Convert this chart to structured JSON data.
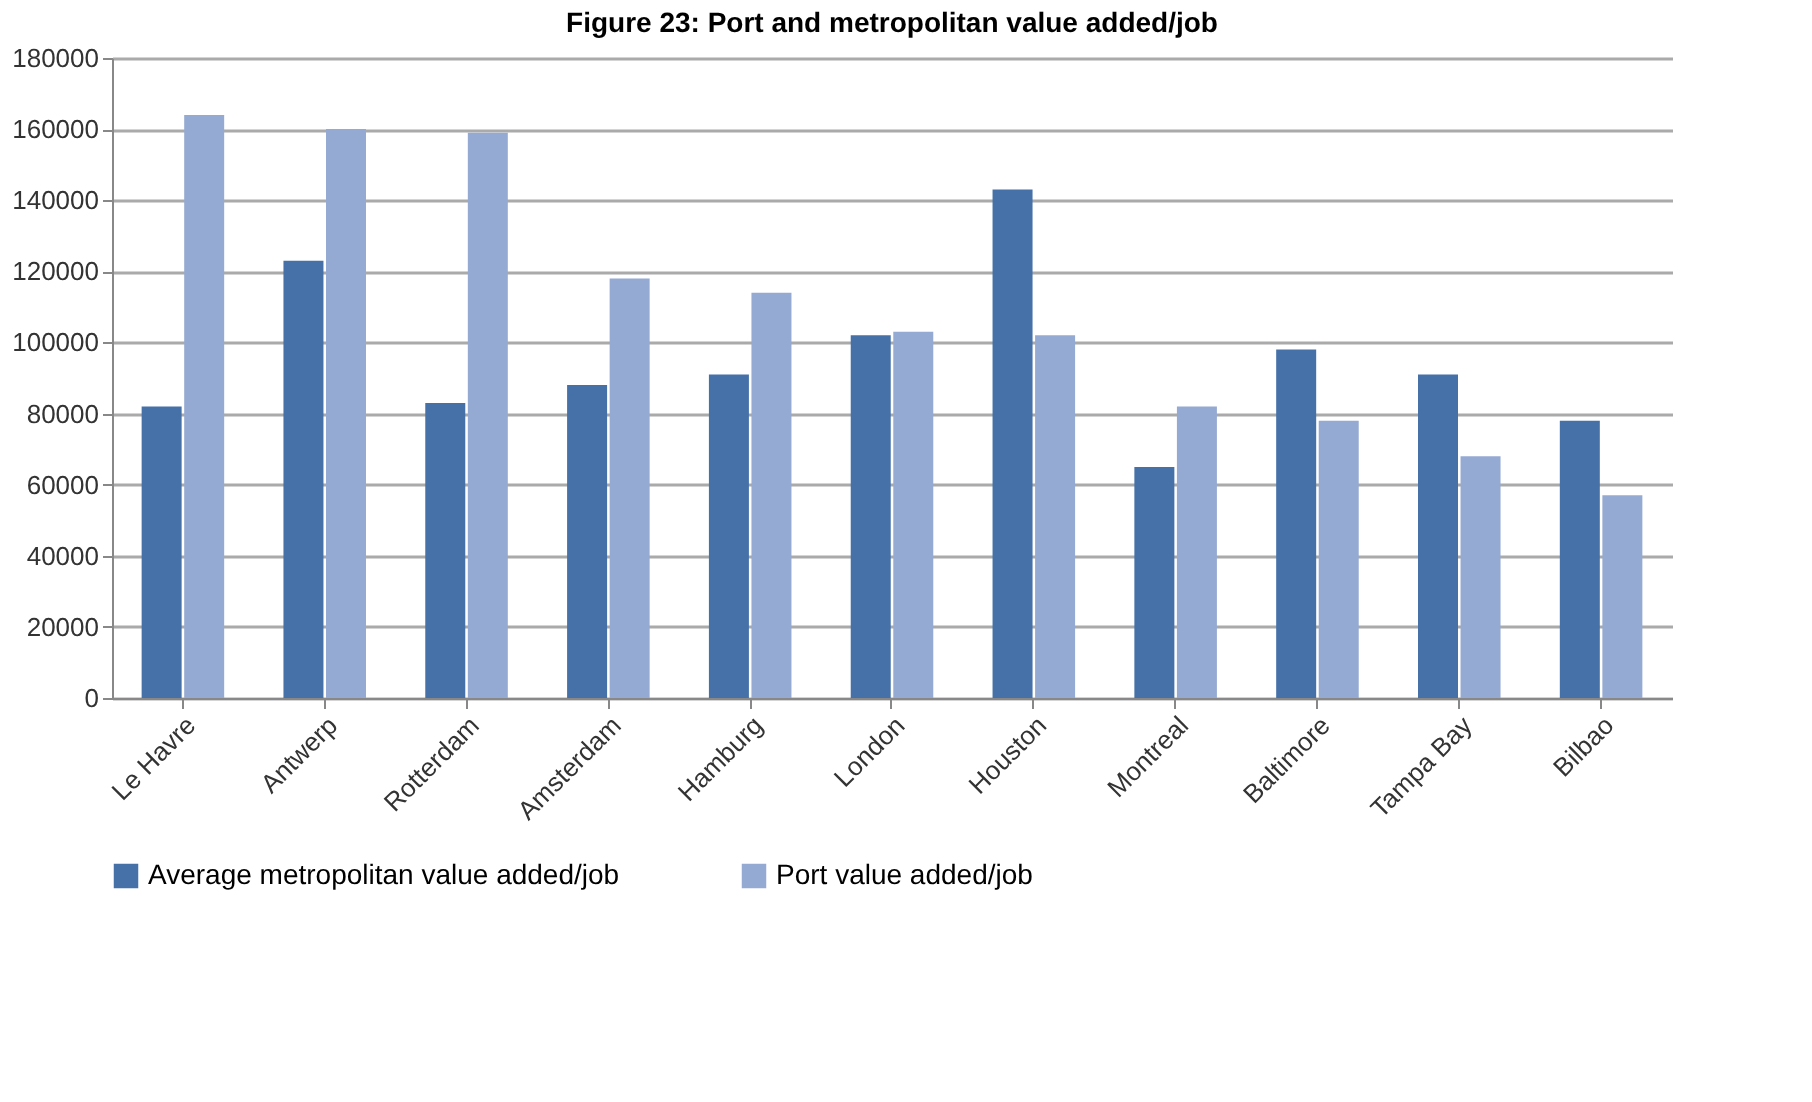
{
  "chart_data": {
    "type": "bar",
    "title": "Figure 23:        Port and metropolitan value added/job",
    "categories": [
      "Le Havre",
      "Antwerp",
      "Rotterdam",
      "Amsterdam",
      "Hamburg",
      "London",
      "Houston",
      "Montreal",
      "Baltimore",
      "Tampa Bay",
      "Bilbao"
    ],
    "series": [
      {
        "name": "Average metropolitan value added/job",
        "color": "#4571a8",
        "values": [
          82000,
          123000,
          83000,
          88000,
          91000,
          102000,
          143000,
          65000,
          98000,
          91000,
          78000
        ]
      },
      {
        "name": "Port value added/job",
        "color": "#95aad2",
        "values": [
          164000,
          160000,
          159000,
          118000,
          114000,
          103000,
          102000,
          82000,
          78000,
          68000,
          57000
        ]
      }
    ],
    "ylim": [
      0,
      180000
    ],
    "yticks": [
      0,
      20000,
      40000,
      60000,
      80000,
      100000,
      120000,
      140000,
      160000,
      180000
    ],
    "grid": "y",
    "legend": "bottom"
  }
}
